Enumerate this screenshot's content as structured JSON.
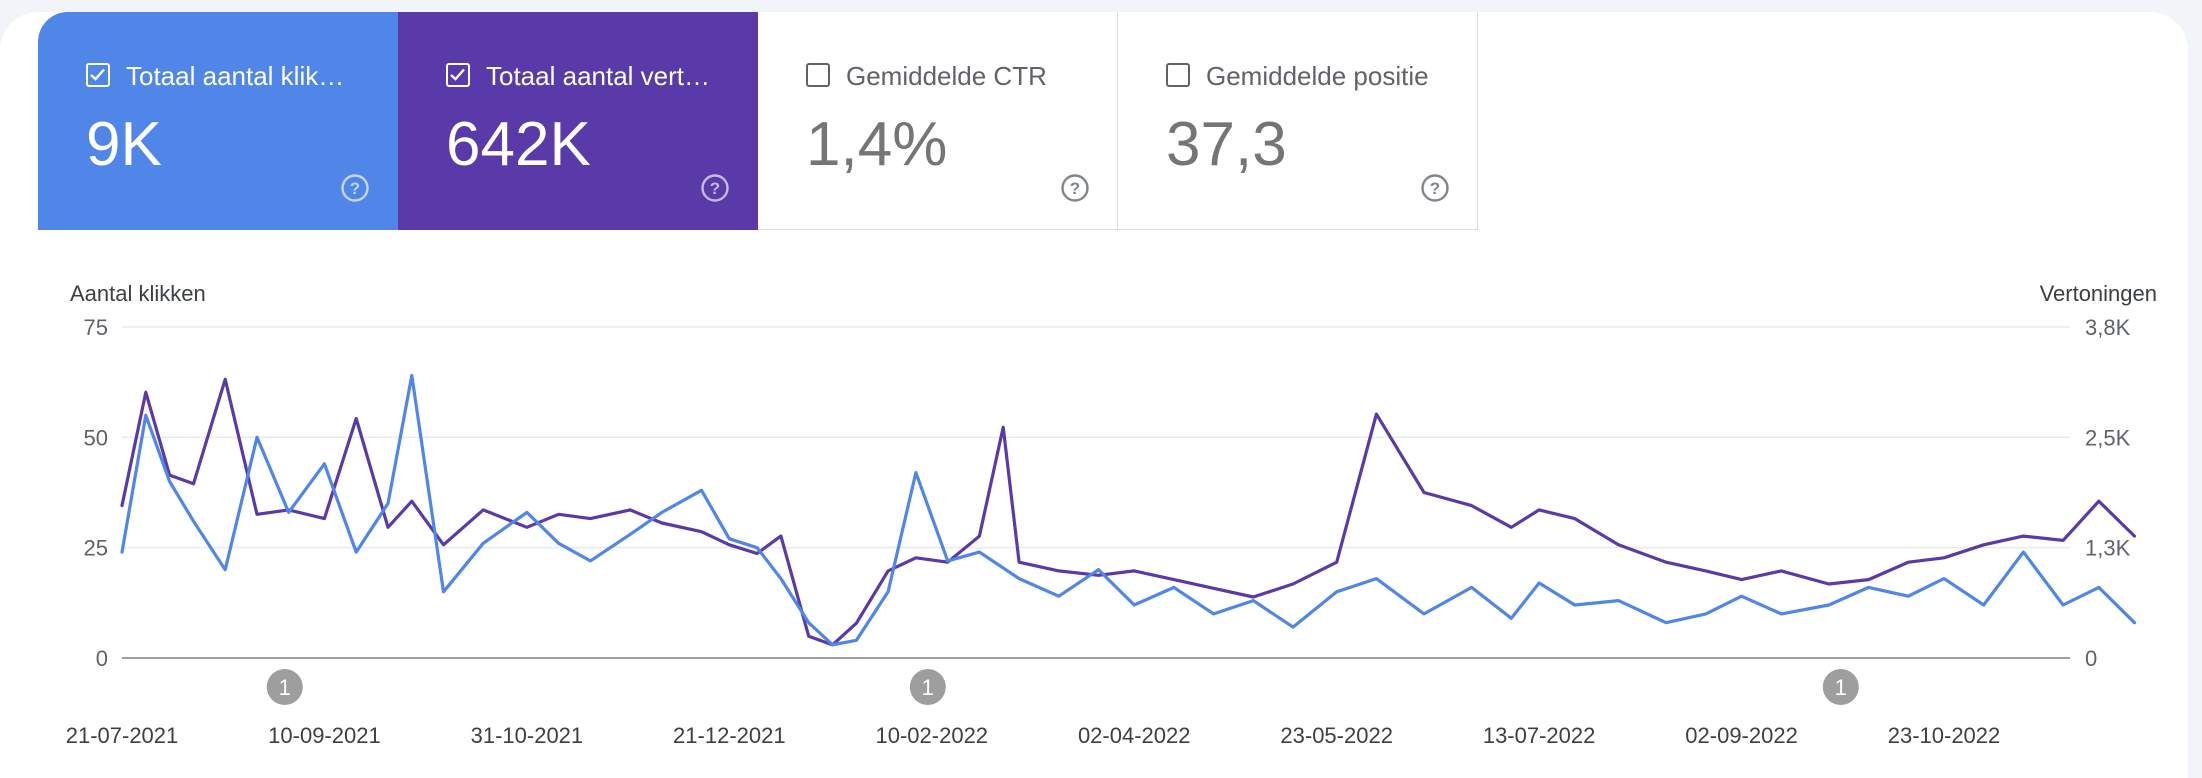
{
  "metrics": [
    {
      "label": "Totaal aantal klik…",
      "value": "9K",
      "checked": true
    },
    {
      "label": "Totaal aantal vert…",
      "value": "642K",
      "checked": true
    },
    {
      "label": "Gemiddelde CTR",
      "value": "1,4%",
      "checked": false
    },
    {
      "label": "Gemiddelde positie",
      "value": "37,3",
      "checked": false
    }
  ],
  "icons": {
    "checkbox_checked": "checkbox-checked-icon",
    "checkbox_unchecked": "checkbox-unchecked-icon",
    "help": "help-circle-icon"
  },
  "colors": {
    "clicks": "#4f86e8",
    "impressions": "#5a3aa8",
    "annotation": "#9e9e9e"
  },
  "chart_data": {
    "type": "line",
    "xlabel": "",
    "x_ticks": [
      "21-07-2021",
      "10-09-2021",
      "31-10-2021",
      "21-12-2021",
      "10-02-2022",
      "02-04-2022",
      "23-05-2022",
      "13-07-2022",
      "02-09-2022",
      "23-10-2022"
    ],
    "x_range": [
      "2021-07-21",
      "2022-12-10"
    ],
    "y_left": {
      "label": "Aantal klikken",
      "ticks": [
        "0",
        "25",
        "50",
        "75"
      ],
      "range": [
        0,
        75
      ]
    },
    "y_right": {
      "label": "Vertoningen",
      "ticks": [
        "0",
        "1,3K",
        "2,5K",
        "3,8K"
      ],
      "range": [
        0,
        3800
      ]
    },
    "annotations": [
      {
        "date": "2021-08-31",
        "label": "1"
      },
      {
        "date": "2022-02-09",
        "label": "1"
      },
      {
        "date": "2022-09-27",
        "label": "1"
      }
    ],
    "series": [
      {
        "name": "Totaal aantal klikken",
        "axis": "left",
        "x": [
          "2021-07-21",
          "2021-07-27",
          "2021-08-02",
          "2021-08-08",
          "2021-08-16",
          "2021-08-24",
          "2021-09-01",
          "2021-09-10",
          "2021-09-18",
          "2021-09-26",
          "2021-10-02",
          "2021-10-10",
          "2021-10-20",
          "2021-10-31",
          "2021-11-08",
          "2021-11-16",
          "2021-11-26",
          "2021-12-04",
          "2021-12-14",
          "2021-12-21",
          "2021-12-28",
          "2022-01-03",
          "2022-01-10",
          "2022-01-16",
          "2022-01-22",
          "2022-01-30",
          "2022-02-06",
          "2022-02-14",
          "2022-02-22",
          "2022-03-04",
          "2022-03-14",
          "2022-03-24",
          "2022-04-02",
          "2022-04-12",
          "2022-04-22",
          "2022-05-02",
          "2022-05-12",
          "2022-05-23",
          "2022-06-02",
          "2022-06-14",
          "2022-06-26",
          "2022-07-06",
          "2022-07-13",
          "2022-07-22",
          "2022-08-02",
          "2022-08-14",
          "2022-08-24",
          "2022-09-02",
          "2022-09-12",
          "2022-09-24",
          "2022-10-04",
          "2022-10-14",
          "2022-10-23",
          "2022-11-02",
          "2022-11-12",
          "2022-11-22",
          "2022-12-01",
          "2022-12-10"
        ],
        "y": [
          24,
          55,
          40,
          31,
          20,
          50,
          33,
          44,
          24,
          35,
          64,
          15,
          26,
          33,
          26,
          22,
          28,
          33,
          38,
          27,
          25,
          18,
          8,
          3,
          4,
          15,
          42,
          22,
          24,
          18,
          14,
          20,
          12,
          16,
          10,
          13,
          7,
          15,
          18,
          10,
          16,
          9,
          17,
          12,
          13,
          8,
          10,
          14,
          10,
          12,
          16,
          14,
          18,
          12,
          24,
          12,
          16,
          8
        ]
      },
      {
        "name": "Totaal aantal vertoningen",
        "axis": "right",
        "x": [
          "2021-07-21",
          "2021-07-27",
          "2021-08-02",
          "2021-08-08",
          "2021-08-16",
          "2021-08-24",
          "2021-09-01",
          "2021-09-10",
          "2021-09-18",
          "2021-09-26",
          "2021-10-02",
          "2021-10-10",
          "2021-10-20",
          "2021-10-31",
          "2021-11-08",
          "2021-11-16",
          "2021-11-26",
          "2021-12-04",
          "2021-12-14",
          "2021-12-21",
          "2021-12-28",
          "2022-01-03",
          "2022-01-10",
          "2022-01-16",
          "2022-01-22",
          "2022-01-30",
          "2022-02-06",
          "2022-02-14",
          "2022-02-22",
          "2022-02-28",
          "2022-03-04",
          "2022-03-14",
          "2022-03-24",
          "2022-04-02",
          "2022-04-12",
          "2022-04-22",
          "2022-05-02",
          "2022-05-12",
          "2022-05-23",
          "2022-06-02",
          "2022-06-14",
          "2022-06-26",
          "2022-07-06",
          "2022-07-13",
          "2022-07-22",
          "2022-08-02",
          "2022-08-14",
          "2022-08-24",
          "2022-09-02",
          "2022-09-12",
          "2022-09-24",
          "2022-10-04",
          "2022-10-14",
          "2022-10-23",
          "2022-11-02",
          "2022-11-12",
          "2022-11-22",
          "2022-12-01",
          "2022-12-10"
        ],
        "y": [
          1750,
          3050,
          2100,
          2000,
          3200,
          1650,
          1700,
          1600,
          2750,
          1500,
          1800,
          1300,
          1700,
          1500,
          1650,
          1600,
          1700,
          1550,
          1450,
          1300,
          1200,
          1400,
          250,
          150,
          400,
          1000,
          1150,
          1100,
          1400,
          2650,
          1100,
          1000,
          950,
          1000,
          900,
          800,
          700,
          850,
          1100,
          2800,
          1900,
          1750,
          1500,
          1700,
          1600,
          1300,
          1100,
          1000,
          900,
          1000,
          850,
          900,
          1100,
          1150,
          1300,
          1400,
          1350,
          1800,
          1400
        ]
      }
    ]
  }
}
